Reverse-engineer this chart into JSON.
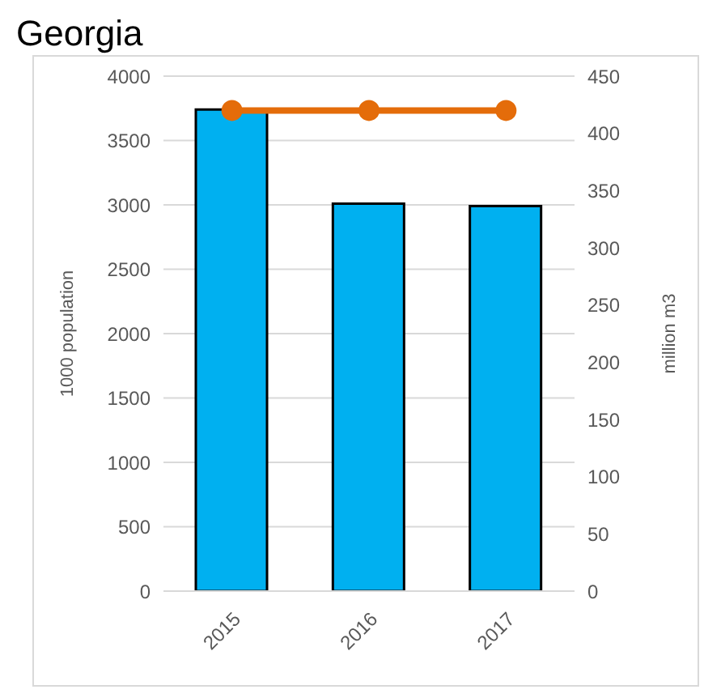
{
  "chart_data": {
    "type": "bar",
    "title": "Georgia",
    "ylabel": "1000 population",
    "y2label": "million m3",
    "categories": [
      "2015",
      "2016",
      "2017"
    ],
    "series": [
      {
        "color": "#00b0f0",
        "values": [
          3740,
          3010,
          2990
        ]
      },
      {
        "type": "line",
        "axis": "y2",
        "color": "#e46c0a",
        "values": [
          420,
          420,
          420
        ],
        "marker": "circle"
      }
    ],
    "ylim": [
      0,
      4000
    ],
    "yticks": [
      0,
      500,
      1000,
      1500,
      2000,
      2500,
      3000,
      3500,
      4000
    ],
    "y2lim": [
      0,
      450
    ],
    "y2ticks": [
      0,
      50,
      100,
      150,
      200,
      250,
      300,
      350,
      400,
      450
    ],
    "grid": "y",
    "legend": false
  }
}
